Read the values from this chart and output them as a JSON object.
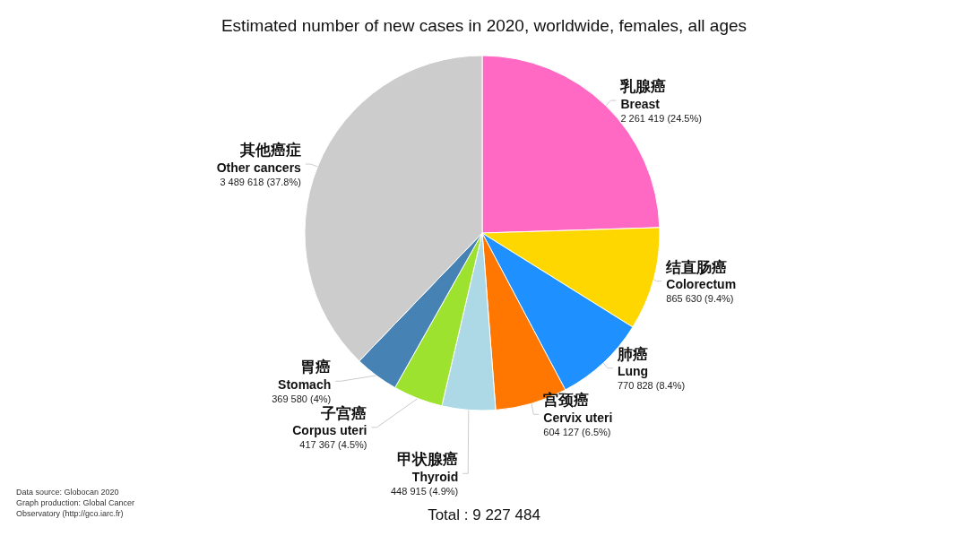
{
  "chart_data": {
    "type": "pie",
    "title": "Estimated number of new cases in 2020, worldwide, females, all ages",
    "categories": [
      "乳腺癌\nBreast",
      "结直肠癌\nColorectum",
      "肺癌\nLung",
      "宫颈癌\nCervix uteri",
      "甲状腺癌\nThyroid",
      "子宫癌\nCorpus uteri",
      "胃癌\nStomach",
      "其他癌症\nOther cancers"
    ],
    "values": [
      2261419,
      865630,
      770828,
      604127,
      448915,
      417367,
      369580,
      3489618
    ],
    "value_labels": [
      "2 261 419 (24.5%)",
      "865 630 (9.4%)",
      "770 828 (8.4%)",
      "604 127 (6.5%)",
      "448 915 (4.9%)",
      "417 367 (4.5%)",
      "369 580 (4%)",
      "3 489 618 (37.8%)"
    ],
    "colors": [
      "#ff69c4",
      "#ffd700",
      "#1e90ff",
      "#ff7700",
      "#add8e6",
      "#9de22e",
      "#4682b4",
      "#cccccc"
    ],
    "legend": false,
    "annotations": [
      "Total : 9 227 484",
      "Data source: Globocan 2020\nGraph production: Global Cancer\nObservatory (http://gco.iarc.fr)"
    ]
  }
}
